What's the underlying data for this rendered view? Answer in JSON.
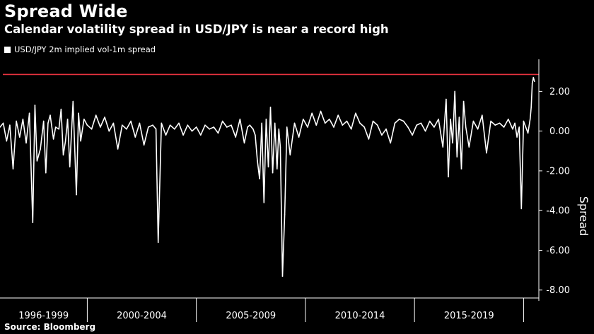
{
  "title": "Spread Wide",
  "subtitle": "Calendar volatility spread in USD/JPY is near a record high",
  "legend_label": "USD/JPY 2m implied vol-1m spread",
  "source": "Source: Bloomberg",
  "colors": {
    "background": "#000000",
    "series": "#ffffff",
    "reference_line": "#e8333f",
    "axis": "#ffffff"
  },
  "chart_data": {
    "type": "line",
    "title": "Spread Wide",
    "ylabel": "Spread",
    "xlabel": "",
    "ylim": [
      -8.4,
      3.4
    ],
    "xlim": [
      1996.0,
      2020.7
    ],
    "y_ticks": [
      2,
      0,
      -2,
      -4,
      -6,
      -8
    ],
    "y_tick_labels": [
      "2.00",
      "0.00",
      "-2.00",
      "-4.00",
      "-6.00",
      "-8.00"
    ],
    "x_periods": [
      {
        "label": "1996-1999",
        "start": 1996.0,
        "end": 2000.0
      },
      {
        "label": "2000-2004",
        "start": 2000.0,
        "end": 2005.0
      },
      {
        "label": "2005-2009",
        "start": 2005.0,
        "end": 2010.0
      },
      {
        "label": "2010-2014",
        "start": 2010.0,
        "end": 2015.0
      },
      {
        "label": "2015-2019",
        "start": 2015.0,
        "end": 2020.0
      }
    ],
    "reference_line": {
      "y": 2.85,
      "color": "#e8333f"
    },
    "grid": false,
    "legend_position": "top-left",
    "axis_side": "right",
    "series": [
      {
        "name": "USD/JPY 2m implied vol-1m spread",
        "color": "#ffffff",
        "x": [
          1996.0,
          1996.15,
          1996.3,
          1996.45,
          1996.6,
          1996.75,
          1996.9,
          1997.05,
          1997.2,
          1997.35,
          1997.5,
          1997.6,
          1997.7,
          1997.85,
          1998.0,
          1998.1,
          1998.2,
          1998.3,
          1998.45,
          1998.55,
          1998.7,
          1998.8,
          1998.9,
          1999.0,
          1999.1,
          1999.2,
          1999.35,
          1999.5,
          1999.6,
          1999.7,
          1999.85,
          2000.0,
          2000.2,
          2000.4,
          2000.6,
          2000.8,
          2001.0,
          2001.2,
          2001.4,
          2001.6,
          2001.8,
          2002.0,
          2002.2,
          2002.4,
          2002.6,
          2002.8,
          2003.0,
          2003.15,
          2003.25,
          2003.4,
          2003.6,
          2003.8,
          2004.0,
          2004.2,
          2004.4,
          2004.6,
          2004.8,
          2005.0,
          2005.2,
          2005.4,
          2005.6,
          2005.8,
          2006.0,
          2006.2,
          2006.4,
          2006.6,
          2006.8,
          2007.0,
          2007.2,
          2007.35,
          2007.45,
          2007.6,
          2007.7,
          2007.8,
          2007.9,
          2008.0,
          2008.1,
          2008.2,
          2008.3,
          2008.4,
          2008.5,
          2008.6,
          2008.7,
          2008.78,
          2008.85,
          2008.95,
          2009.05,
          2009.15,
          2009.3,
          2009.5,
          2009.7,
          2009.9,
          2010.1,
          2010.3,
          2010.5,
          2010.7,
          2010.9,
          2011.1,
          2011.3,
          2011.5,
          2011.7,
          2011.9,
          2012.1,
          2012.3,
          2012.5,
          2012.7,
          2012.9,
          2013.1,
          2013.3,
          2013.5,
          2013.7,
          2013.9,
          2014.1,
          2014.3,
          2014.5,
          2014.7,
          2014.9,
          2015.1,
          2015.3,
          2015.5,
          2015.7,
          2015.9,
          2016.1,
          2016.3,
          2016.45,
          2016.55,
          2016.65,
          2016.75,
          2016.85,
          2016.95,
          2017.05,
          2017.15,
          2017.25,
          2017.35,
          2017.5,
          2017.7,
          2017.9,
          2018.1,
          2018.3,
          2018.5,
          2018.7,
          2018.9,
          2019.1,
          2019.3,
          2019.5,
          2019.6,
          2019.7,
          2019.8,
          2019.9,
          2020.0,
          2020.1,
          2020.2,
          2020.3,
          2020.35,
          2020.4,
          2020.45,
          2020.5
        ],
        "values": [
          0.2,
          0.4,
          -0.5,
          0.3,
          -1.9,
          0.5,
          -0.3,
          0.6,
          -0.6,
          0.9,
          -4.6,
          1.3,
          -1.5,
          -0.9,
          0.5,
          -2.1,
          0.4,
          0.8,
          -0.4,
          0.2,
          0.1,
          1.1,
          -1.2,
          -0.5,
          0.6,
          -1.8,
          1.5,
          -3.2,
          0.9,
          -0.5,
          0.6,
          0.3,
          0.1,
          0.8,
          0.2,
          0.7,
          0.0,
          0.4,
          -0.9,
          0.3,
          0.1,
          0.5,
          -0.3,
          0.4,
          -0.7,
          0.2,
          0.3,
          0.1,
          -5.6,
          0.4,
          -0.2,
          0.3,
          0.1,
          0.4,
          -0.2,
          0.3,
          0.0,
          0.2,
          -0.2,
          0.3,
          0.1,
          0.2,
          -0.1,
          0.5,
          0.2,
          0.3,
          -0.3,
          0.6,
          -0.6,
          0.2,
          0.3,
          0.1,
          -0.2,
          -1.5,
          -2.4,
          0.4,
          -3.6,
          0.6,
          -1.8,
          1.2,
          -2.1,
          0.4,
          -1.9,
          0.1,
          -0.8,
          -7.3,
          -4.2,
          0.2,
          -1.2,
          0.4,
          -0.3,
          0.6,
          0.2,
          0.9,
          0.3,
          1.0,
          0.4,
          0.6,
          0.2,
          0.8,
          0.3,
          0.5,
          0.1,
          0.9,
          0.4,
          0.2,
          -0.4,
          0.5,
          0.3,
          -0.2,
          0.1,
          -0.6,
          0.4,
          0.6,
          0.5,
          0.2,
          -0.2,
          0.3,
          0.4,
          0.0,
          0.5,
          0.2,
          0.6,
          -0.8,
          1.6,
          -2.3,
          0.6,
          -0.6,
          2.0,
          -1.3,
          0.7,
          -1.9,
          1.5,
          0.2,
          -0.8,
          0.5,
          0.1,
          0.8,
          -1.1,
          0.5,
          0.3,
          0.4,
          0.2,
          0.6,
          0.1,
          0.4,
          -0.3,
          0.2,
          -3.9,
          0.5,
          0.2,
          -0.1,
          0.6,
          1.2,
          2.4,
          2.7,
          2.5
        ]
      }
    ]
  }
}
